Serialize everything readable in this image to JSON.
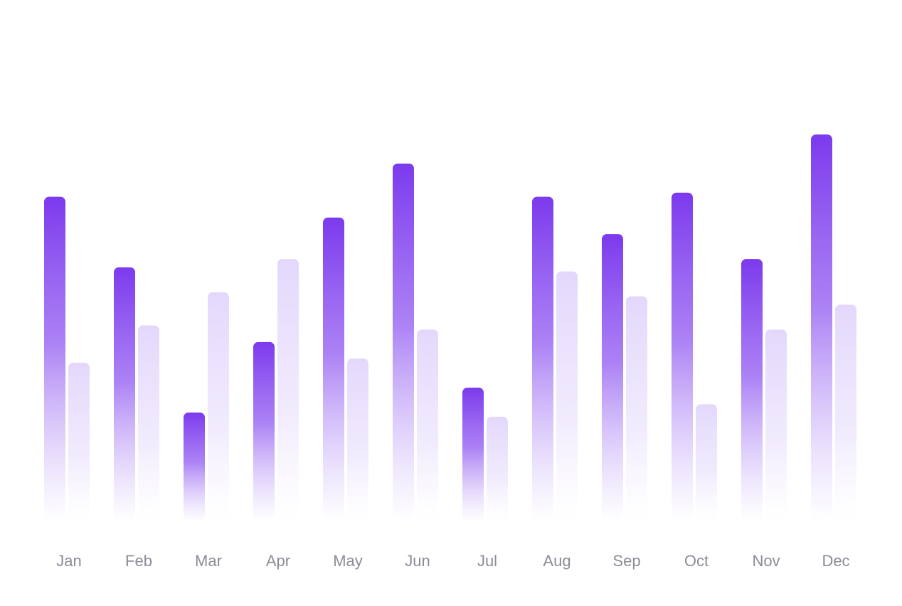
{
  "chart_data": {
    "type": "bar",
    "categories": [
      "Jan",
      "Feb",
      "Mar",
      "Apr",
      "May",
      "Jun",
      "Jul",
      "Aug",
      "Sep",
      "Oct",
      "Nov",
      "Dec"
    ],
    "series": [
      {
        "values": [
          380,
          295,
          120,
          205,
          355,
          420,
          150,
          380,
          335,
          385,
          305,
          455
        ],
        "color": "#7c3aed"
      },
      {
        "values": [
          180,
          225,
          265,
          305,
          185,
          220,
          115,
          290,
          260,
          130,
          220,
          250
        ],
        "color": "#e3d8fc"
      }
    ],
    "title": "",
    "xlabel": "",
    "ylabel": "",
    "ylim": [
      0,
      600
    ],
    "grid": false,
    "legend": "none"
  }
}
